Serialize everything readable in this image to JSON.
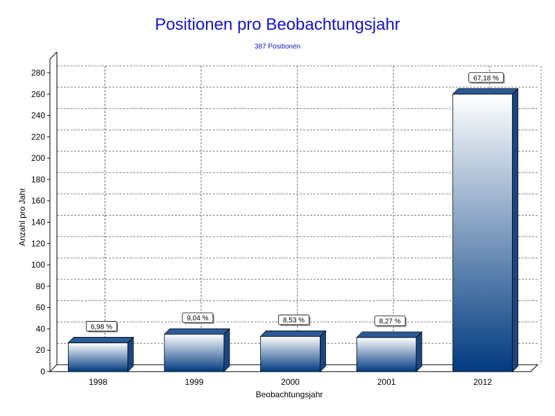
{
  "chart_data": {
    "type": "bar",
    "title": "Positionen pro Beobachtungsjahr",
    "subtitle": "387 Positionen",
    "xlabel": "Beobachtungsjahr",
    "ylabel": "Anzahl pro Jahr",
    "categories": [
      "1998",
      "1999",
      "2000",
      "2001",
      "2012"
    ],
    "values": [
      27,
      35,
      33,
      32,
      260
    ],
    "data_labels": [
      "6,98 %",
      "9,04 %",
      "8,53 %",
      "8,27 %",
      "67,18 %"
    ],
    "ylim": [
      0,
      280
    ],
    "yticks": [
      0,
      20,
      40,
      60,
      80,
      100,
      120,
      140,
      160,
      180,
      200,
      220,
      240,
      260,
      280
    ],
    "grid": true,
    "colors": {
      "title": "#1414c8",
      "bar_top": "#ffffff",
      "bar_bottom": "#003a80",
      "bar_side": "#0d3f7a",
      "bar_cap": "#2a5a98",
      "grid": "#808080"
    }
  }
}
